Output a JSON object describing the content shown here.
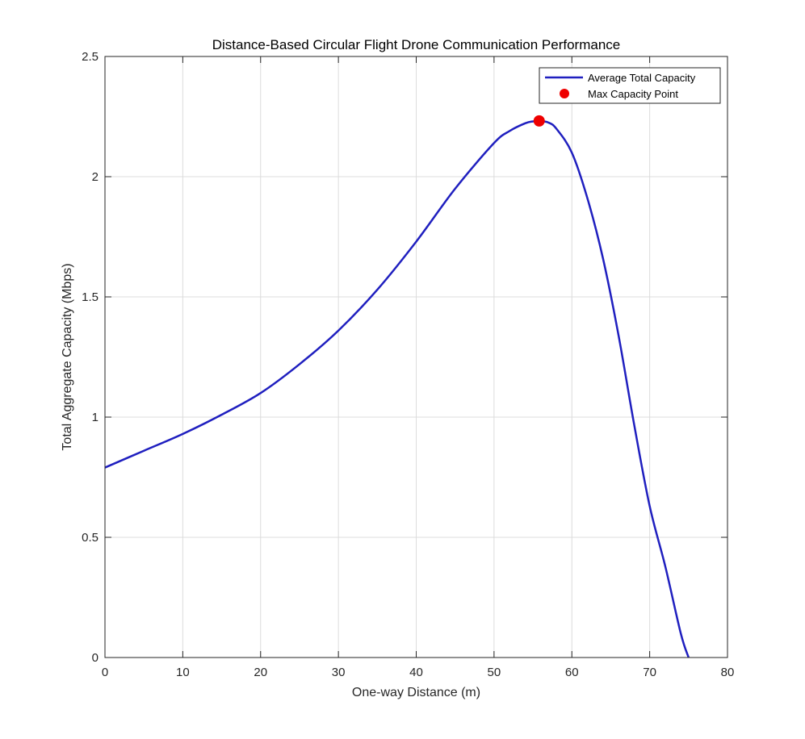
{
  "chart_data": {
    "type": "line",
    "title": "Distance-Based Circular Flight Drone Communication Performance",
    "xlabel": "One-way Distance (m)",
    "ylabel": "Total Aggregate Capacity (Mbps)",
    "xlim": [
      0,
      80
    ],
    "ylim": [
      0,
      2.5
    ],
    "xticks": [
      0,
      10,
      20,
      30,
      40,
      50,
      60,
      70,
      80
    ],
    "yticks": [
      0,
      0.5,
      1,
      1.5,
      2,
      2.5
    ],
    "xtick_labels": [
      "0",
      "10",
      "20",
      "30",
      "40",
      "50",
      "60",
      "70",
      "80"
    ],
    "ytick_labels": [
      "0",
      "0.5",
      "1",
      "1.5",
      "2",
      "2.5"
    ],
    "grid": true,
    "legend_position": "top-right",
    "series": [
      {
        "name": "Average Total Capacity",
        "color": "#1f1fbf",
        "x": [
          0,
          5,
          10,
          15,
          20,
          25,
          30,
          35,
          40,
          45,
          50,
          52,
          54,
          55,
          56,
          57,
          58,
          60,
          62,
          64,
          66,
          68,
          70,
          72,
          74,
          75
        ],
        "y": [
          0.79,
          0.86,
          0.93,
          1.01,
          1.1,
          1.22,
          1.36,
          1.53,
          1.73,
          1.95,
          2.14,
          2.19,
          2.222,
          2.23,
          2.231,
          2.225,
          2.2,
          2.1,
          1.91,
          1.66,
          1.34,
          0.97,
          0.63,
          0.38,
          0.1,
          0.0
        ]
      }
    ],
    "markers": [
      {
        "name": "Max Capacity Point",
        "color": "#ee0000",
        "x": 55.8,
        "y": 2.232
      }
    ]
  }
}
